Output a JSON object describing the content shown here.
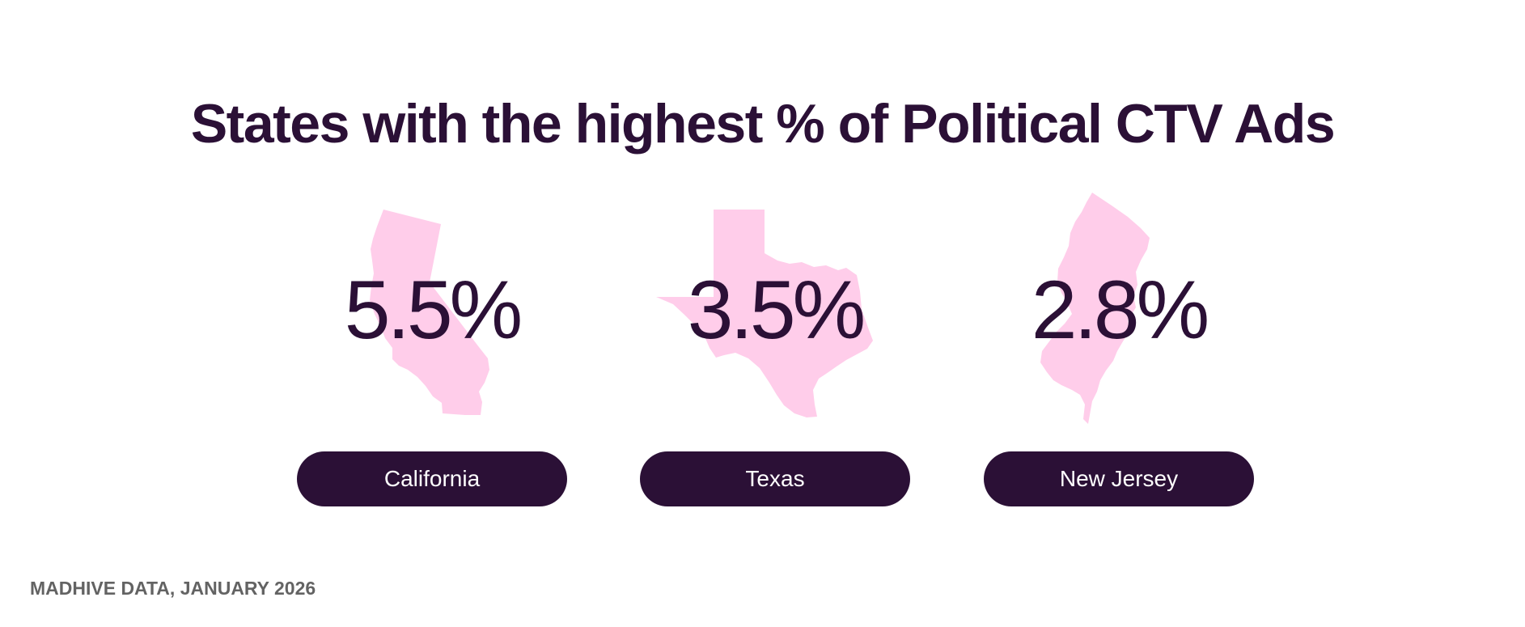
{
  "title": "States with the highest % of Political CTV Ads",
  "colors": {
    "text_dark": "#2b1036",
    "shape_fill": "#ffcdea",
    "pill_bg": "#2b1036",
    "pill_text": "#ffffff",
    "source_text": "#636363"
  },
  "states": [
    {
      "name": "California",
      "value": "5.5%",
      "icon": "california-map-icon"
    },
    {
      "name": "Texas",
      "value": "3.5%",
      "icon": "texas-map-icon"
    },
    {
      "name": "New Jersey",
      "value": "2.8%",
      "icon": "new-jersey-map-icon"
    }
  ],
  "source": "MADHIVE DATA, JANUARY 2026"
}
